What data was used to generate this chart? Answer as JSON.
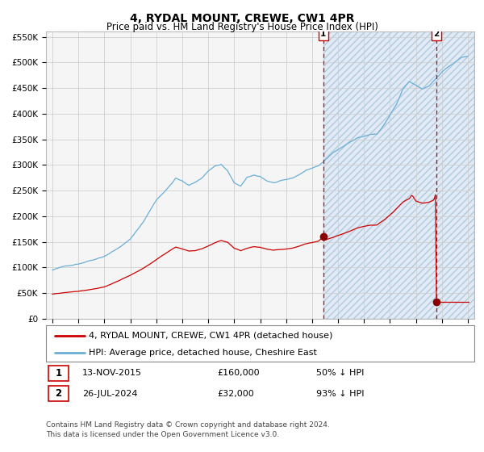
{
  "title": "4, RYDAL MOUNT, CREWE, CW1 4PR",
  "subtitle": "Price paid vs. HM Land Registry's House Price Index (HPI)",
  "ylim": [
    0,
    560000
  ],
  "yticks": [
    0,
    50000,
    100000,
    150000,
    200000,
    250000,
    300000,
    350000,
    400000,
    450000,
    500000,
    550000
  ],
  "ytick_labels": [
    "£0",
    "£50K",
    "£100K",
    "£150K",
    "£200K",
    "£250K",
    "£300K",
    "£350K",
    "£400K",
    "£450K",
    "£500K",
    "£550K"
  ],
  "hpi_color": "#6baed6",
  "price_color": "#cc0000",
  "chart_bg_color": "#f0f4f8",
  "shaded_bg_color": "#dce8f5",
  "grid_color": "#d0d0d0",
  "fig_bg_color": "#ffffff",
  "sale1_date_num": 2015.87,
  "sale1_price": 160000,
  "sale2_date_num": 2024.57,
  "sale2_price": 32000,
  "marker_color": "#8b0000",
  "vline_color": "#cc0000",
  "xmin": 1994.5,
  "xmax": 2027.5,
  "legend_label_price": "4, RYDAL MOUNT, CREWE, CW1 4PR (detached house)",
  "legend_label_hpi": "HPI: Average price, detached house, Cheshire East",
  "note1_date": "13-NOV-2015",
  "note1_price": "£160,000",
  "note1_pct": "50% ↓ HPI",
  "note2_date": "26-JUL-2024",
  "note2_price": "£32,000",
  "note2_pct": "93% ↓ HPI",
  "footer": "Contains HM Land Registry data © Crown copyright and database right 2024.\nThis data is licensed under the Open Government Licence v3.0.",
  "title_fontsize": 10,
  "subtitle_fontsize": 8.5,
  "tick_fontsize": 7.5,
  "legend_fontsize": 8,
  "note_fontsize": 8,
  "footer_fontsize": 6.5,
  "hpi_key_points": [
    [
      1995.0,
      95000
    ],
    [
      1996.0,
      102000
    ],
    [
      1997.0,
      108000
    ],
    [
      1998.0,
      116000
    ],
    [
      1999.0,
      125000
    ],
    [
      2000.0,
      140000
    ],
    [
      2001.0,
      158000
    ],
    [
      2002.0,
      192000
    ],
    [
      2003.0,
      235000
    ],
    [
      2004.0,
      262000
    ],
    [
      2004.5,
      278000
    ],
    [
      2005.0,
      272000
    ],
    [
      2005.5,
      263000
    ],
    [
      2006.0,
      270000
    ],
    [
      2006.5,
      278000
    ],
    [
      2007.0,
      292000
    ],
    [
      2007.5,
      302000
    ],
    [
      2008.0,
      305000
    ],
    [
      2008.5,
      292000
    ],
    [
      2009.0,
      268000
    ],
    [
      2009.5,
      262000
    ],
    [
      2010.0,
      278000
    ],
    [
      2010.5,
      282000
    ],
    [
      2011.0,
      280000
    ],
    [
      2011.5,
      272000
    ],
    [
      2012.0,
      268000
    ],
    [
      2012.5,
      270000
    ],
    [
      2013.0,
      272000
    ],
    [
      2013.5,
      275000
    ],
    [
      2014.0,
      282000
    ],
    [
      2014.5,
      290000
    ],
    [
      2015.0,
      295000
    ],
    [
      2015.5,
      300000
    ],
    [
      2016.0,
      310000
    ],
    [
      2016.5,
      322000
    ],
    [
      2017.0,
      332000
    ],
    [
      2017.5,
      340000
    ],
    [
      2018.0,
      348000
    ],
    [
      2018.5,
      355000
    ],
    [
      2019.0,
      358000
    ],
    [
      2019.5,
      362000
    ],
    [
      2020.0,
      362000
    ],
    [
      2020.5,
      378000
    ],
    [
      2021.0,
      398000
    ],
    [
      2021.5,
      418000
    ],
    [
      2022.0,
      448000
    ],
    [
      2022.5,
      462000
    ],
    [
      2023.0,
      455000
    ],
    [
      2023.5,
      448000
    ],
    [
      2024.0,
      455000
    ],
    [
      2024.5,
      468000
    ],
    [
      2025.0,
      482000
    ],
    [
      2025.5,
      492000
    ],
    [
      2026.0,
      500000
    ],
    [
      2026.5,
      508000
    ],
    [
      2027.0,
      512000
    ]
  ],
  "red_key_points": [
    [
      1995.0,
      48000
    ],
    [
      1996.0,
      51000
    ],
    [
      1997.0,
      54000
    ],
    [
      1998.0,
      58000
    ],
    [
      1999.0,
      63000
    ],
    [
      2000.0,
      74000
    ],
    [
      2001.0,
      85000
    ],
    [
      2002.0,
      98000
    ],
    [
      2003.0,
      115000
    ],
    [
      2004.0,
      132000
    ],
    [
      2004.5,
      140000
    ],
    [
      2005.0,
      136000
    ],
    [
      2005.5,
      132000
    ],
    [
      2006.0,
      133000
    ],
    [
      2006.5,
      136000
    ],
    [
      2007.0,
      142000
    ],
    [
      2007.5,
      148000
    ],
    [
      2008.0,
      152000
    ],
    [
      2008.5,
      148000
    ],
    [
      2009.0,
      136000
    ],
    [
      2009.5,
      131000
    ],
    [
      2010.0,
      136000
    ],
    [
      2010.5,
      139000
    ],
    [
      2011.0,
      138000
    ],
    [
      2011.5,
      135000
    ],
    [
      2012.0,
      133000
    ],
    [
      2012.5,
      134000
    ],
    [
      2013.0,
      135000
    ],
    [
      2013.5,
      137000
    ],
    [
      2014.0,
      141000
    ],
    [
      2014.5,
      145000
    ],
    [
      2015.0,
      148000
    ],
    [
      2015.5,
      151000
    ],
    [
      2015.87,
      160000
    ],
    [
      2016.0,
      154000
    ],
    [
      2016.5,
      158000
    ],
    [
      2017.0,
      162000
    ],
    [
      2017.5,
      167000
    ],
    [
      2018.0,
      172000
    ],
    [
      2018.5,
      178000
    ],
    [
      2019.0,
      181000
    ],
    [
      2019.5,
      183000
    ],
    [
      2020.0,
      183000
    ],
    [
      2020.5,
      192000
    ],
    [
      2021.0,
      202000
    ],
    [
      2021.5,
      215000
    ],
    [
      2022.0,
      228000
    ],
    [
      2022.5,
      235000
    ],
    [
      2022.7,
      242000
    ],
    [
      2023.0,
      230000
    ],
    [
      2023.5,
      226000
    ],
    [
      2024.0,
      228000
    ],
    [
      2024.4,
      233000
    ],
    [
      2024.55,
      248000
    ],
    [
      2024.57,
      32000
    ],
    [
      2024.8,
      32000
    ],
    [
      2025.0,
      32000
    ],
    [
      2026.0,
      32000
    ],
    [
      2027.0,
      32000
    ]
  ]
}
